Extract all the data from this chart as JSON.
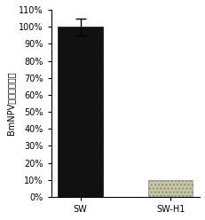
{
  "categories": [
    "SW",
    "SW-H1"
  ],
  "values": [
    100,
    10
  ],
  "errors": [
    5,
    0
  ],
  "bar_colors": [
    "#111111",
    "#c8c8a0"
  ],
  "bar_hatch": [
    "dense_dot",
    "sparse_dot"
  ],
  "ylabel": "BmNPV病毒相对含量",
  "ylim": [
    0,
    110
  ],
  "yticks": [
    0,
    10,
    20,
    30,
    40,
    50,
    60,
    70,
    80,
    90,
    100,
    110
  ],
  "ytick_labels": [
    "0%",
    "10%",
    "20%",
    "30%",
    "40%",
    "50%",
    "60%",
    "70%",
    "80%",
    "90%",
    "100%",
    "110%"
  ],
  "background_color": "#ffffff",
  "plot_bg_color": "#ffffff",
  "bar_width": 0.5,
  "error_capsize": 4,
  "font_size": 7,
  "ylabel_fontsize": 7
}
